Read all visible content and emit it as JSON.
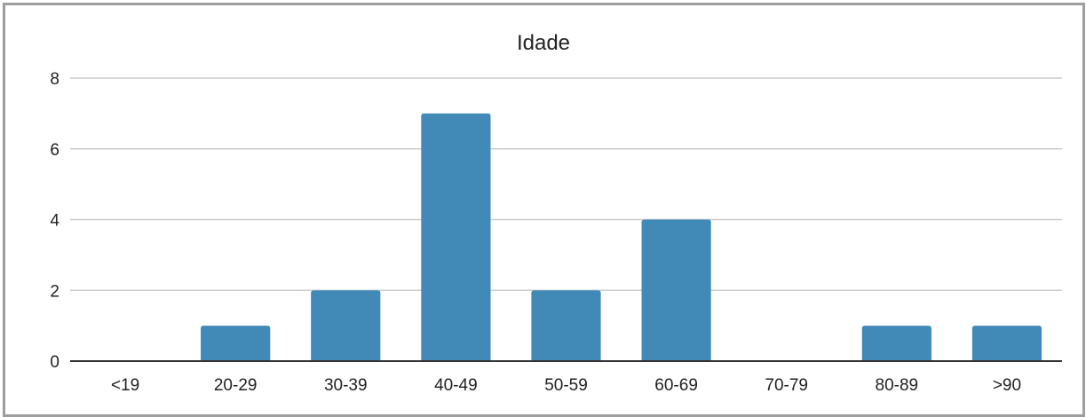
{
  "chart_data": {
    "type": "bar",
    "title": "Idade",
    "xlabel": "",
    "ylabel": "",
    "categories": [
      "<19",
      "20-29",
      "30-39",
      "40-49",
      "50-59",
      "60-69",
      "70-79",
      "80-89",
      ">90"
    ],
    "values": [
      0,
      1,
      2,
      7,
      2,
      4,
      0,
      1,
      1
    ],
    "ylim": [
      0,
      8
    ],
    "yticks": [
      0,
      2,
      4,
      6,
      8
    ],
    "grid": true,
    "legend": "none",
    "bar_color": "#4189b6",
    "grid_color": "#cccccc",
    "axis_color": "#333333"
  }
}
